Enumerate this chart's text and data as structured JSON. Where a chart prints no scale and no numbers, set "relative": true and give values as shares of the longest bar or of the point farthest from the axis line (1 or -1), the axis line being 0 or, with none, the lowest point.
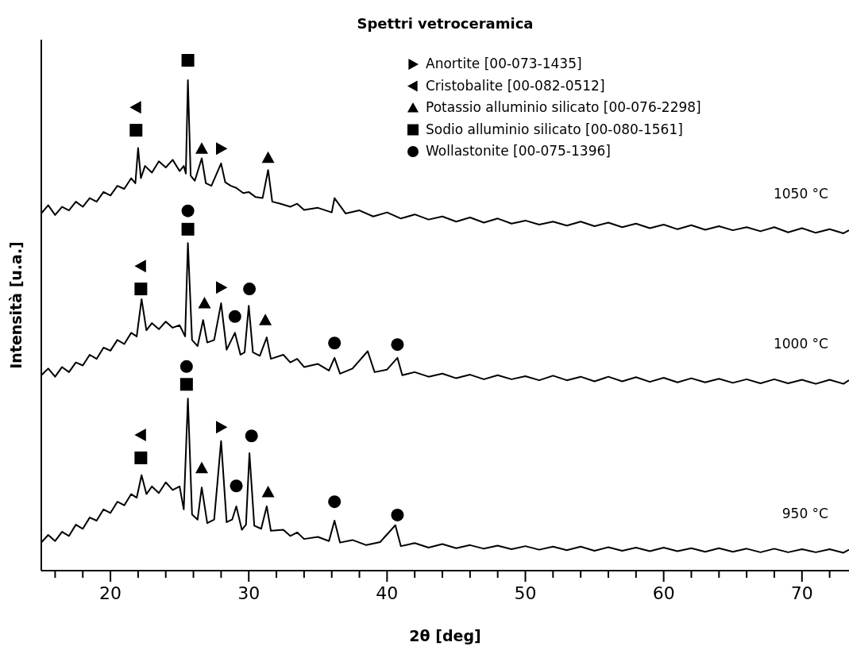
{
  "chart_data": {
    "type": "line",
    "title": "Spettri vetroceramica",
    "xlabel": "2θ [deg]",
    "ylabel": "Intensità [u.a.]",
    "relative": true,
    "legend": "top",
    "grid": false,
    "xlim": [
      15.0,
      73.4
    ],
    "xticks": [
      {
        "value": 16,
        "label": null
      },
      {
        "value": 18,
        "label": null
      },
      20,
      {
        "value": 22,
        "label": null
      },
      {
        "value": 24,
        "label": null
      },
      {
        "value": 26,
        "label": null
      },
      {
        "value": 28,
        "label": null
      },
      30,
      {
        "value": 32,
        "label": null
      },
      {
        "value": 34,
        "label": null
      },
      {
        "value": 36,
        "label": null
      },
      {
        "value": 38,
        "label": null
      },
      40,
      {
        "value": 42,
        "label": null
      },
      {
        "value": 44,
        "label": null
      },
      {
        "value": 46,
        "label": null
      },
      {
        "value": 48,
        "label": null
      },
      50,
      {
        "value": 52,
        "label": null
      },
      {
        "value": 54,
        "label": null
      },
      {
        "value": 56,
        "label": null
      },
      {
        "value": 58,
        "label": null
      },
      60,
      {
        "value": 62,
        "label": null
      },
      {
        "value": 64,
        "label": null
      },
      {
        "value": 66,
        "label": null
      },
      {
        "value": 68,
        "label": null
      },
      70,
      {
        "value": 72,
        "label": null
      }
    ],
    "series": [
      {
        "name": "1050 °C",
        "color": "#000000",
        "x": [
          15.0,
          15.5,
          16.0,
          16.5,
          17.0,
          17.5,
          18.0,
          18.5,
          19.0,
          19.5,
          20.0,
          20.5,
          21.0,
          21.5,
          21.8,
          22.0,
          22.2,
          22.5,
          23.0,
          23.5,
          24.0,
          24.5,
          25.0,
          25.3,
          25.45,
          25.6,
          25.8,
          26.1,
          26.6,
          26.9,
          27.3,
          28.0,
          28.3,
          28.7,
          29.1,
          29.6,
          30.0,
          30.5,
          31.0,
          31.4,
          31.7,
          32.3,
          33.0,
          33.5,
          34.0,
          35.0,
          36.0,
          36.2,
          37.0,
          38.0,
          39.0,
          40,
          41,
          42,
          43,
          44,
          45,
          46,
          47,
          48,
          49,
          50,
          51,
          52,
          53,
          54,
          55,
          56,
          57,
          58,
          59,
          60,
          61,
          62,
          63,
          64,
          65,
          66,
          67,
          68,
          69,
          70,
          71,
          72,
          73,
          73.4
        ],
        "values": [
          0.7,
          0.716,
          0.697,
          0.713,
          0.706,
          0.723,
          0.713,
          0.73,
          0.723,
          0.742,
          0.735,
          0.754,
          0.748,
          0.769,
          0.759,
          0.828,
          0.769,
          0.793,
          0.78,
          0.802,
          0.79,
          0.805,
          0.783,
          0.793,
          0.778,
          0.961,
          0.774,
          0.764,
          0.808,
          0.759,
          0.754,
          0.798,
          0.761,
          0.754,
          0.75,
          0.74,
          0.742,
          0.732,
          0.73,
          0.785,
          0.723,
          0.719,
          0.713,
          0.719,
          0.707,
          0.711,
          0.702,
          0.73,
          0.7,
          0.706,
          0.694,
          0.702,
          0.69,
          0.698,
          0.688,
          0.694,
          0.684,
          0.692,
          0.682,
          0.69,
          0.68,
          0.686,
          0.678,
          0.684,
          0.676,
          0.684,
          0.675,
          0.682,
          0.673,
          0.68,
          0.671,
          0.678,
          0.669,
          0.677,
          0.668,
          0.675,
          0.667,
          0.673,
          0.665,
          0.673,
          0.663,
          0.671,
          0.662,
          0.669,
          0.661,
          0.667
        ]
      },
      {
        "name": "1000 °C",
        "color": "#000000",
        "x": [
          15.0,
          15.5,
          16.0,
          16.5,
          17.0,
          17.5,
          18.0,
          18.5,
          19.0,
          19.5,
          20.0,
          20.5,
          21.0,
          21.5,
          21.9,
          22.25,
          22.6,
          23.0,
          23.5,
          24.0,
          24.5,
          25.0,
          25.4,
          25.6,
          25.9,
          26.3,
          26.7,
          27.0,
          27.5,
          28.0,
          28.4,
          29.0,
          29.4,
          29.7,
          30.0,
          30.3,
          30.8,
          31.3,
          31.6,
          32.5,
          33.0,
          33.5,
          34.0,
          35.0,
          35.8,
          36.2,
          36.6,
          37.5,
          38.6,
          39.1,
          40.0,
          40.75,
          41.1,
          42,
          43,
          44,
          45,
          46,
          47,
          48,
          49,
          50,
          51,
          52,
          53,
          54,
          55,
          56,
          57,
          58,
          59,
          60,
          61,
          62,
          63,
          64,
          65,
          66,
          67,
          68,
          69,
          70,
          71,
          72,
          73,
          73.4
        ],
        "values": [
          0.383,
          0.396,
          0.38,
          0.399,
          0.389,
          0.408,
          0.402,
          0.423,
          0.415,
          0.437,
          0.431,
          0.452,
          0.444,
          0.466,
          0.459,
          0.532,
          0.471,
          0.485,
          0.473,
          0.488,
          0.476,
          0.481,
          0.459,
          0.642,
          0.452,
          0.44,
          0.491,
          0.447,
          0.452,
          0.524,
          0.433,
          0.466,
          0.423,
          0.428,
          0.519,
          0.428,
          0.421,
          0.457,
          0.415,
          0.423,
          0.408,
          0.415,
          0.399,
          0.405,
          0.392,
          0.417,
          0.386,
          0.396,
          0.43,
          0.389,
          0.394,
          0.417,
          0.383,
          0.389,
          0.38,
          0.386,
          0.377,
          0.384,
          0.375,
          0.383,
          0.375,
          0.381,
          0.373,
          0.382,
          0.373,
          0.38,
          0.371,
          0.38,
          0.371,
          0.379,
          0.37,
          0.378,
          0.369,
          0.377,
          0.369,
          0.376,
          0.368,
          0.375,
          0.367,
          0.375,
          0.367,
          0.374,
          0.366,
          0.374,
          0.366,
          0.373
        ]
      },
      {
        "name": "950 °C",
        "color": "#000000",
        "x": [
          15.0,
          15.5,
          16.0,
          16.5,
          17.0,
          17.5,
          18.0,
          18.5,
          19.0,
          19.5,
          20.0,
          20.5,
          21.0,
          21.5,
          21.9,
          22.25,
          22.6,
          23.0,
          23.5,
          24.0,
          24.5,
          25.0,
          25.3,
          25.6,
          25.9,
          26.3,
          26.6,
          27.0,
          27.5,
          28.0,
          28.4,
          28.8,
          29.1,
          29.5,
          29.8,
          30.05,
          30.4,
          30.9,
          31.3,
          31.6,
          32.5,
          33.0,
          33.5,
          34.0,
          35.0,
          35.8,
          36.2,
          36.6,
          37.5,
          38.5,
          39.5,
          40.6,
          41.0,
          42,
          43,
          44,
          45,
          46,
          47,
          48,
          49,
          50,
          51,
          52,
          53,
          54,
          55,
          56,
          57,
          58,
          59,
          60,
          61,
          62,
          63,
          64,
          65,
          66,
          67,
          68,
          69,
          70,
          71,
          72,
          73,
          73.4
        ],
        "values": [
          0.055,
          0.07,
          0.058,
          0.076,
          0.068,
          0.09,
          0.082,
          0.104,
          0.098,
          0.12,
          0.113,
          0.135,
          0.128,
          0.15,
          0.143,
          0.187,
          0.15,
          0.165,
          0.152,
          0.173,
          0.158,
          0.165,
          0.12,
          0.337,
          0.11,
          0.1,
          0.163,
          0.093,
          0.1,
          0.254,
          0.095,
          0.1,
          0.126,
          0.08,
          0.09,
          0.23,
          0.088,
          0.082,
          0.126,
          0.078,
          0.08,
          0.068,
          0.075,
          0.062,
          0.066,
          0.058,
          0.098,
          0.055,
          0.06,
          0.05,
          0.056,
          0.089,
          0.048,
          0.054,
          0.045,
          0.052,
          0.044,
          0.05,
          0.043,
          0.049,
          0.042,
          0.048,
          0.041,
          0.047,
          0.04,
          0.047,
          0.039,
          0.046,
          0.039,
          0.045,
          0.038,
          0.045,
          0.038,
          0.044,
          0.037,
          0.044,
          0.037,
          0.043,
          0.036,
          0.043,
          0.036,
          0.042,
          0.036,
          0.042,
          0.035,
          0.041
        ]
      },
      {
        "name": "Anortite [00-073-1435]",
        "type": "scatter",
        "marker": "triangle-right",
        "color": "#000000",
        "x": [
          28.0,
          28.0,
          28.0
        ],
        "values": [
          0.827,
          0.555,
          0.281
        ]
      },
      {
        "name": "Cristobalite [00-082-0512]",
        "type": "scatter",
        "marker": "triangle-left",
        "color": "#000000",
        "x": [
          21.85,
          22.2,
          22.2
        ],
        "values": [
          0.908,
          0.597,
          0.266
        ]
      },
      {
        "name": "Potassio alluminio silicato [00-076-2298]",
        "type": "scatter",
        "marker": "triangle",
        "color": "#000000",
        "x": [
          26.6,
          31.4,
          26.8,
          31.2,
          26.6,
          31.4
        ],
        "values": [
          0.827,
          0.809,
          0.524,
          0.491,
          0.201,
          0.154
        ]
      },
      {
        "name": "Sodio alluminio silicato [00-080-1561]",
        "type": "scatter",
        "marker": "square",
        "color": "#000000",
        "x": [
          25.6,
          21.85,
          25.6,
          22.2,
          25.5,
          22.2
        ],
        "values": [
          1.0,
          0.863,
          0.669,
          0.552,
          0.365,
          0.221
        ]
      },
      {
        "name": "Wollastonite [00-075-1396]",
        "type": "scatter",
        "marker": "circle",
        "color": "#000000",
        "x": [
          25.6,
          29.0,
          30.05,
          36.2,
          40.75,
          25.5,
          29.1,
          30.2,
          36.2,
          40.75
        ],
        "values": [
          0.705,
          0.498,
          0.552,
          0.446,
          0.443,
          0.4,
          0.166,
          0.264,
          0.135,
          0.109
        ]
      }
    ]
  }
}
